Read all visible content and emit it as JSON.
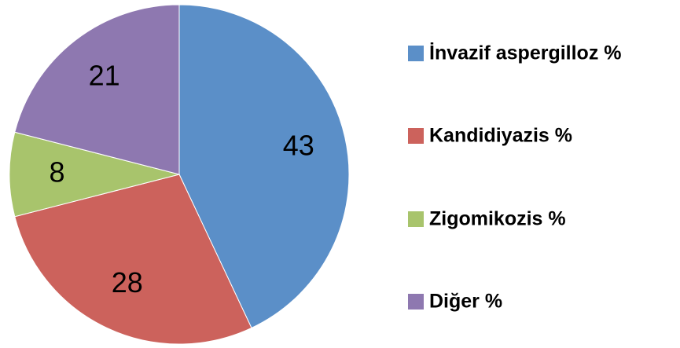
{
  "chart_data": {
    "type": "pie",
    "categories": [
      "İnvazif aspergilloz %",
      "Kandidiyazis %",
      "Zigomikozis %",
      "Diğer %"
    ],
    "values": [
      43,
      28,
      8,
      21
    ],
    "colors": [
      "#5b8fc8",
      "#cc625c",
      "#a8c46c",
      "#8e78b0"
    ],
    "legend": "right"
  }
}
